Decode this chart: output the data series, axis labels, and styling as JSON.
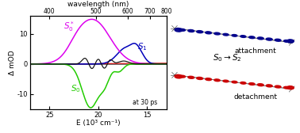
{
  "title_top": "wavelength (nm)",
  "xlabel": "E (10³ cm⁻¹)",
  "ylabel": "Δ mOD",
  "xlim_E": [
    27000,
    13000
  ],
  "ylim": [
    -15,
    16
  ],
  "yticks": [
    -10,
    0,
    10
  ],
  "xticks_E": [
    25000,
    20000,
    15000
  ],
  "xtick_labels": [
    "25",
    "20",
    "15"
  ],
  "nm_ticks": [
    400,
    500,
    600,
    700,
    800
  ],
  "annotation": "at 30 ps",
  "color_magenta": "#dd00ee",
  "color_blue": "#0000bb",
  "color_black": "#111111",
  "color_red": "#cc0000",
  "color_green": "#22cc00",
  "color_mol_blue": "#00008b",
  "color_mol_red": "#cc0000",
  "color_mol_gray": "#888888",
  "label_attachment": "attachment",
  "label_detachment": "detachment",
  "label_transition": "S₀→S₂"
}
